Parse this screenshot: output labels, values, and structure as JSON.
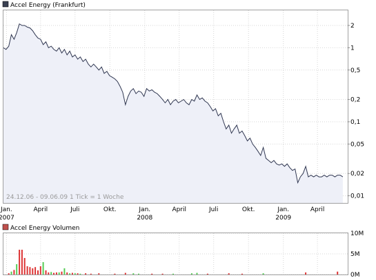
{
  "price_chart": {
    "legend_label": "Accel Energy (Frankfurt)",
    "legend_color": "#3a4152",
    "line_color": "#2f3650",
    "fill_color": "#eef0f8",
    "date_range_note": "24.12.06 - 09.06.09   1 Tick = 1 Woche"
  },
  "volume_chart": {
    "legend_label": "Accel Energy Volumen",
    "legend_color": "#c0504d",
    "up_color": "#55cc55",
    "down_color": "#dd3333"
  },
  "chart_data": [
    {
      "type": "line",
      "title": "Accel Energy (Frankfurt)",
      "y_scale": "log",
      "ylim": [
        0.008,
        3.2
      ],
      "y_ticks": [
        {
          "value": 2,
          "label": "2"
        },
        {
          "value": 1,
          "label": "1"
        },
        {
          "value": 0.5,
          "label": "0,5"
        },
        {
          "value": 0.2,
          "label": "0,2"
        },
        {
          "value": 0.1,
          "label": "0,1"
        },
        {
          "value": 0.05,
          "label": "0,05"
        },
        {
          "value": 0.02,
          "label": "0,02"
        },
        {
          "value": 0.01,
          "label": "0,01"
        }
      ],
      "x_ticks": [
        {
          "date": "2007-01",
          "label": "Jan.",
          "year": "2007"
        },
        {
          "date": "2007-04",
          "label": "April",
          "year": ""
        },
        {
          "date": "2007-07",
          "label": "Juli",
          "year": ""
        },
        {
          "date": "2007-10",
          "label": "Okt.",
          "year": ""
        },
        {
          "date": "2008-01",
          "label": "Jan.",
          "year": "2008"
        },
        {
          "date": "2008-04",
          "label": "April",
          "year": ""
        },
        {
          "date": "2008-07",
          "label": "Juli",
          "year": ""
        },
        {
          "date": "2008-10",
          "label": "Okt.",
          "year": ""
        },
        {
          "date": "2009-01",
          "label": "Jan.",
          "year": "2009"
        },
        {
          "date": "2009-04",
          "label": "April",
          "year": ""
        }
      ],
      "x_range": [
        "2006-12-24",
        "2009-06-09"
      ],
      "points": [
        [
          "2006-12-24",
          1.0
        ],
        [
          "2006-12-31",
          0.95
        ],
        [
          "2007-01-07",
          1.05
        ],
        [
          "2007-01-14",
          1.5
        ],
        [
          "2007-01-21",
          1.3
        ],
        [
          "2007-01-28",
          1.6
        ],
        [
          "2007-02-04",
          2.1
        ],
        [
          "2007-02-11",
          2.0
        ],
        [
          "2007-02-18",
          2.0
        ],
        [
          "2007-02-25",
          1.9
        ],
        [
          "2007-03-04",
          1.85
        ],
        [
          "2007-03-11",
          1.7
        ],
        [
          "2007-03-18",
          1.5
        ],
        [
          "2007-03-25",
          1.35
        ],
        [
          "2007-04-01",
          1.3
        ],
        [
          "2007-04-08",
          1.1
        ],
        [
          "2007-04-15",
          1.2
        ],
        [
          "2007-04-22",
          1.0
        ],
        [
          "2007-04-29",
          1.05
        ],
        [
          "2007-05-06",
          0.95
        ],
        [
          "2007-05-13",
          0.9
        ],
        [
          "2007-05-20",
          1.0
        ],
        [
          "2007-05-27",
          0.85
        ],
        [
          "2007-06-03",
          0.95
        ],
        [
          "2007-06-10",
          0.8
        ],
        [
          "2007-06-17",
          0.9
        ],
        [
          "2007-06-24",
          0.75
        ],
        [
          "2007-07-01",
          0.8
        ],
        [
          "2007-07-08",
          0.7
        ],
        [
          "2007-07-15",
          0.75
        ],
        [
          "2007-07-22",
          0.65
        ],
        [
          "2007-07-29",
          0.7
        ],
        [
          "2007-08-05",
          0.6
        ],
        [
          "2007-08-12",
          0.55
        ],
        [
          "2007-08-19",
          0.6
        ],
        [
          "2007-08-26",
          0.55
        ],
        [
          "2007-09-02",
          0.5
        ],
        [
          "2007-09-09",
          0.55
        ],
        [
          "2007-09-16",
          0.45
        ],
        [
          "2007-09-23",
          0.48
        ],
        [
          "2007-09-30",
          0.42
        ],
        [
          "2007-10-07",
          0.4
        ],
        [
          "2007-10-14",
          0.38
        ],
        [
          "2007-10-21",
          0.35
        ],
        [
          "2007-10-28",
          0.3
        ],
        [
          "2007-11-04",
          0.25
        ],
        [
          "2007-11-11",
          0.17
        ],
        [
          "2007-11-18",
          0.22
        ],
        [
          "2007-11-25",
          0.26
        ],
        [
          "2007-12-02",
          0.28
        ],
        [
          "2007-12-09",
          0.24
        ],
        [
          "2007-12-16",
          0.26
        ],
        [
          "2007-12-23",
          0.25
        ],
        [
          "2007-12-30",
          0.22
        ],
        [
          "2008-01-06",
          0.28
        ],
        [
          "2008-01-13",
          0.26
        ],
        [
          "2008-01-20",
          0.27
        ],
        [
          "2008-01-27",
          0.25
        ],
        [
          "2008-02-03",
          0.24
        ],
        [
          "2008-02-10",
          0.22
        ],
        [
          "2008-02-17",
          0.2
        ],
        [
          "2008-02-24",
          0.18
        ],
        [
          "2008-03-02",
          0.2
        ],
        [
          "2008-03-09",
          0.17
        ],
        [
          "2008-03-16",
          0.19
        ],
        [
          "2008-03-23",
          0.2
        ],
        [
          "2008-03-30",
          0.18
        ],
        [
          "2008-04-06",
          0.19
        ],
        [
          "2008-04-13",
          0.2
        ],
        [
          "2008-04-20",
          0.18
        ],
        [
          "2008-04-27",
          0.17
        ],
        [
          "2008-05-04",
          0.2
        ],
        [
          "2008-05-11",
          0.19
        ],
        [
          "2008-05-18",
          0.23
        ],
        [
          "2008-05-25",
          0.2
        ],
        [
          "2008-06-01",
          0.21
        ],
        [
          "2008-06-08",
          0.19
        ],
        [
          "2008-06-15",
          0.18
        ],
        [
          "2008-06-22",
          0.16
        ],
        [
          "2008-06-29",
          0.14
        ],
        [
          "2008-07-06",
          0.15
        ],
        [
          "2008-07-13",
          0.12
        ],
        [
          "2008-07-20",
          0.13
        ],
        [
          "2008-07-27",
          0.1
        ],
        [
          "2008-08-03",
          0.08
        ],
        [
          "2008-08-10",
          0.09
        ],
        [
          "2008-08-17",
          0.07
        ],
        [
          "2008-08-24",
          0.08
        ],
        [
          "2008-08-31",
          0.09
        ],
        [
          "2008-09-07",
          0.07
        ],
        [
          "2008-09-14",
          0.075
        ],
        [
          "2008-09-21",
          0.065
        ],
        [
          "2008-09-28",
          0.055
        ],
        [
          "2008-10-05",
          0.06
        ],
        [
          "2008-10-12",
          0.05
        ],
        [
          "2008-10-19",
          0.045
        ],
        [
          "2008-10-26",
          0.04
        ],
        [
          "2008-11-02",
          0.035
        ],
        [
          "2008-11-09",
          0.045
        ],
        [
          "2008-11-16",
          0.032
        ],
        [
          "2008-11-23",
          0.03
        ],
        [
          "2008-11-30",
          0.028
        ],
        [
          "2008-12-07",
          0.03
        ],
        [
          "2008-12-14",
          0.027
        ],
        [
          "2008-12-21",
          0.026
        ],
        [
          "2008-12-28",
          0.027
        ],
        [
          "2009-01-04",
          0.025
        ],
        [
          "2009-01-11",
          0.027
        ],
        [
          "2009-01-18",
          0.024
        ],
        [
          "2009-01-25",
          0.022
        ],
        [
          "2009-02-01",
          0.023
        ],
        [
          "2009-02-08",
          0.015
        ],
        [
          "2009-02-15",
          0.018
        ],
        [
          "2009-02-22",
          0.02
        ],
        [
          "2009-03-01",
          0.025
        ],
        [
          "2009-03-08",
          0.018
        ],
        [
          "2009-03-15",
          0.019
        ],
        [
          "2009-03-22",
          0.018
        ],
        [
          "2009-03-29",
          0.019
        ],
        [
          "2009-04-05",
          0.018
        ],
        [
          "2009-04-12",
          0.018
        ],
        [
          "2009-04-19",
          0.019
        ],
        [
          "2009-04-26",
          0.018
        ],
        [
          "2009-05-03",
          0.019
        ],
        [
          "2009-05-10",
          0.019
        ],
        [
          "2009-05-17",
          0.018
        ],
        [
          "2009-05-24",
          0.019
        ],
        [
          "2009-05-31",
          0.019
        ],
        [
          "2009-06-07",
          0.018
        ]
      ]
    },
    {
      "type": "bar",
      "title": "Accel Energy Volumen",
      "ylim": [
        0,
        10000000
      ],
      "y_ticks": [
        {
          "value": 10000000,
          "label": "10M"
        },
        {
          "value": 5000000,
          "label": "5M"
        },
        {
          "value": 0,
          "label": "0M"
        }
      ],
      "bars": [
        {
          "date": "2007-01-07",
          "value": 300000,
          "dir": "down"
        },
        {
          "date": "2007-01-14",
          "value": 700000,
          "dir": "up"
        },
        {
          "date": "2007-01-21",
          "value": 1100000,
          "dir": "down"
        },
        {
          "date": "2007-01-28",
          "value": 2500000,
          "dir": "up"
        },
        {
          "date": "2007-02-04",
          "value": 6000000,
          "dir": "down"
        },
        {
          "date": "2007-02-11",
          "value": 6000000,
          "dir": "down"
        },
        {
          "date": "2007-02-18",
          "value": 4000000,
          "dir": "down"
        },
        {
          "date": "2007-02-25",
          "value": 2000000,
          "dir": "down"
        },
        {
          "date": "2007-03-04",
          "value": 1800000,
          "dir": "down"
        },
        {
          "date": "2007-03-11",
          "value": 1500000,
          "dir": "down"
        },
        {
          "date": "2007-03-18",
          "value": 1800000,
          "dir": "down"
        },
        {
          "date": "2007-03-25",
          "value": 1000000,
          "dir": "down"
        },
        {
          "date": "2007-04-01",
          "value": 2000000,
          "dir": "down"
        },
        {
          "date": "2007-04-08",
          "value": 3000000,
          "dir": "up"
        },
        {
          "date": "2007-04-15",
          "value": 1000000,
          "dir": "down"
        },
        {
          "date": "2007-04-22",
          "value": 500000,
          "dir": "down"
        },
        {
          "date": "2007-04-29",
          "value": 600000,
          "dir": "up"
        },
        {
          "date": "2007-05-06",
          "value": 400000,
          "dir": "down"
        },
        {
          "date": "2007-05-13",
          "value": 500000,
          "dir": "down"
        },
        {
          "date": "2007-05-20",
          "value": 500000,
          "dir": "up"
        },
        {
          "date": "2007-05-27",
          "value": 700000,
          "dir": "down"
        },
        {
          "date": "2007-06-03",
          "value": 1500000,
          "dir": "up"
        },
        {
          "date": "2007-06-10",
          "value": 500000,
          "dir": "down"
        },
        {
          "date": "2007-06-17",
          "value": 300000,
          "dir": "up"
        },
        {
          "date": "2007-06-24",
          "value": 400000,
          "dir": "down"
        },
        {
          "date": "2007-07-01",
          "value": 300000,
          "dir": "up"
        },
        {
          "date": "2007-07-08",
          "value": 300000,
          "dir": "down"
        },
        {
          "date": "2007-07-15",
          "value": 200000,
          "dir": "up"
        },
        {
          "date": "2007-07-29",
          "value": 300000,
          "dir": "down"
        },
        {
          "date": "2007-08-12",
          "value": 200000,
          "dir": "down"
        },
        {
          "date": "2007-09-02",
          "value": 300000,
          "dir": "down"
        },
        {
          "date": "2007-10-14",
          "value": 200000,
          "dir": "down"
        },
        {
          "date": "2007-11-11",
          "value": 400000,
          "dir": "down"
        },
        {
          "date": "2007-12-02",
          "value": 300000,
          "dir": "up"
        },
        {
          "date": "2007-12-16",
          "value": 200000,
          "dir": "up"
        },
        {
          "date": "2008-01-20",
          "value": 200000,
          "dir": "down"
        },
        {
          "date": "2008-02-17",
          "value": 200000,
          "dir": "down"
        },
        {
          "date": "2008-03-16",
          "value": 200000,
          "dir": "up"
        },
        {
          "date": "2008-05-04",
          "value": 300000,
          "dir": "up"
        },
        {
          "date": "2008-05-18",
          "value": 400000,
          "dir": "up"
        },
        {
          "date": "2008-06-15",
          "value": 200000,
          "dir": "down"
        },
        {
          "date": "2008-08-10",
          "value": 300000,
          "dir": "down"
        },
        {
          "date": "2008-09-14",
          "value": 200000,
          "dir": "down"
        },
        {
          "date": "2008-11-09",
          "value": 300000,
          "dir": "up"
        },
        {
          "date": "2009-03-01",
          "value": 500000,
          "dir": "down"
        },
        {
          "date": "2009-05-24",
          "value": 700000,
          "dir": "down"
        }
      ]
    }
  ]
}
